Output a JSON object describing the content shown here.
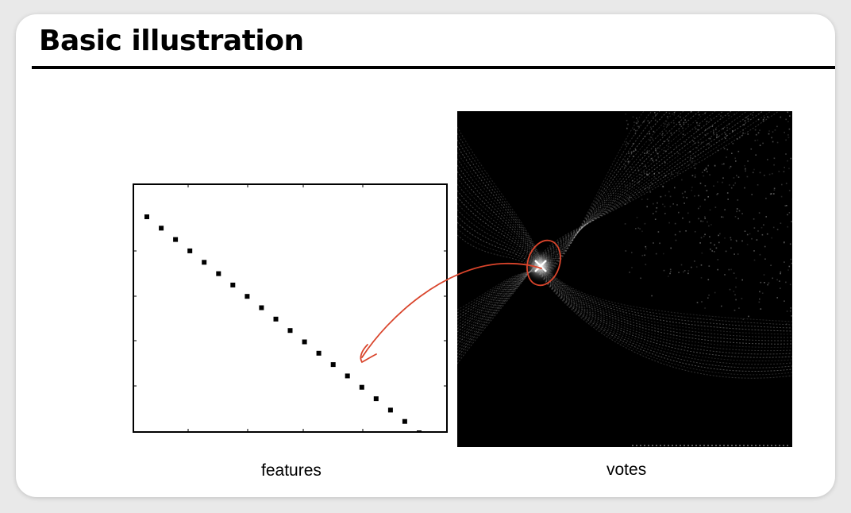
{
  "slide": {
    "title": "Basic illustration"
  },
  "features_plot": {
    "caption": "features",
    "point_count": 20
  },
  "votes_image": {
    "caption": "votes"
  },
  "colors": {
    "annotation": "#d9442b",
    "votes_background": "#000000",
    "points": "#000000"
  }
}
